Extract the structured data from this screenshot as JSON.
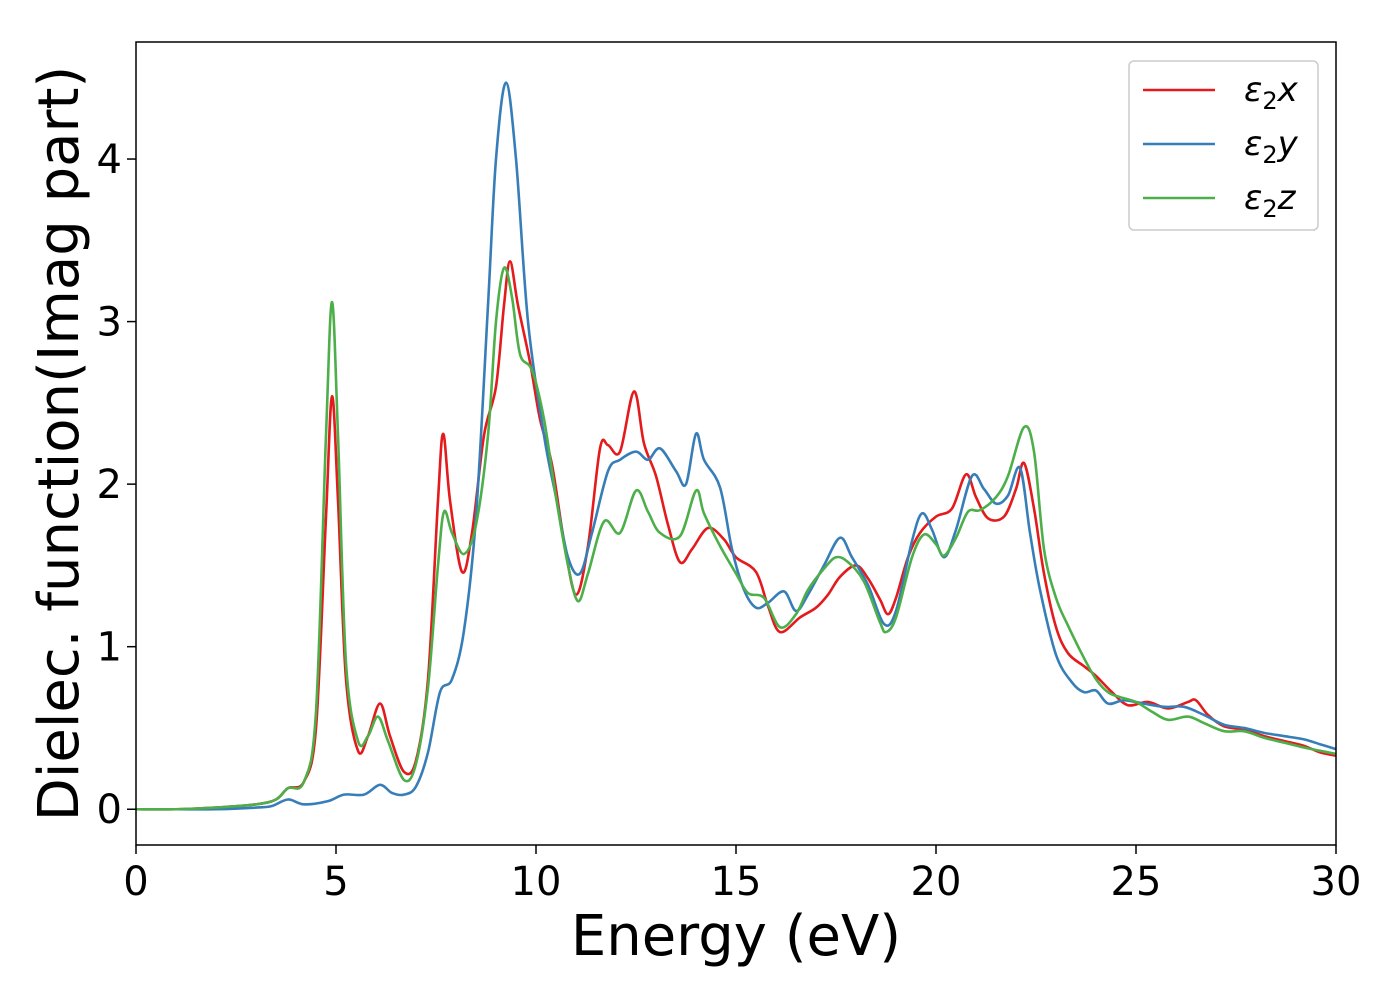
{
  "chart_data": {
    "type": "line",
    "title": "",
    "xlabel": "Energy (eV)",
    "ylabel": "Dielec. function(Imag part)",
    "xlim": [
      0,
      30
    ],
    "ylim": [
      -0.22,
      4.72
    ],
    "xticks": [
      0,
      5,
      10,
      15,
      20,
      25,
      30
    ],
    "yticks": [
      0,
      1,
      2,
      3,
      4
    ],
    "grid": false,
    "legend": "top-right",
    "series": [
      {
        "name": "ε2x",
        "legend_base": "ε",
        "legend_sub": "2",
        "legend_tail": "x",
        "color": "#e41a1c",
        "points": [
          [
            0,
            0.0
          ],
          [
            1,
            0.0
          ],
          [
            2,
            0.01
          ],
          [
            3,
            0.03
          ],
          [
            3.5,
            0.06
          ],
          [
            3.8,
            0.13
          ],
          [
            4.2,
            0.17
          ],
          [
            4.5,
            0.5
          ],
          [
            4.75,
            1.8
          ],
          [
            4.9,
            2.54
          ],
          [
            5.05,
            1.9
          ],
          [
            5.25,
            0.8
          ],
          [
            5.55,
            0.36
          ],
          [
            5.8,
            0.45
          ],
          [
            6.1,
            0.65
          ],
          [
            6.35,
            0.45
          ],
          [
            6.7,
            0.23
          ],
          [
            7.0,
            0.3
          ],
          [
            7.3,
            0.8
          ],
          [
            7.55,
            1.9
          ],
          [
            7.68,
            2.31
          ],
          [
            7.85,
            1.9
          ],
          [
            8.15,
            1.46
          ],
          [
            8.4,
            1.7
          ],
          [
            8.7,
            2.3
          ],
          [
            9.0,
            2.6
          ],
          [
            9.2,
            3.1
          ],
          [
            9.35,
            3.37
          ],
          [
            9.55,
            3.1
          ],
          [
            9.85,
            2.75
          ],
          [
            10.1,
            2.4
          ],
          [
            10.4,
            2.12
          ],
          [
            10.7,
            1.65
          ],
          [
            11.0,
            1.32
          ],
          [
            11.3,
            1.62
          ],
          [
            11.6,
            2.22
          ],
          [
            11.8,
            2.24
          ],
          [
            12.1,
            2.2
          ],
          [
            12.45,
            2.57
          ],
          [
            12.7,
            2.25
          ],
          [
            13.0,
            2.05
          ],
          [
            13.3,
            1.75
          ],
          [
            13.6,
            1.52
          ],
          [
            13.9,
            1.6
          ],
          [
            14.3,
            1.73
          ],
          [
            14.7,
            1.66
          ],
          [
            15.0,
            1.55
          ],
          [
            15.5,
            1.46
          ],
          [
            15.8,
            1.25
          ],
          [
            16.1,
            1.09
          ],
          [
            16.6,
            1.18
          ],
          [
            17.0,
            1.24
          ],
          [
            17.3,
            1.32
          ],
          [
            17.6,
            1.43
          ],
          [
            18.0,
            1.5
          ],
          [
            18.3,
            1.42
          ],
          [
            18.6,
            1.29
          ],
          [
            18.8,
            1.2
          ],
          [
            19.0,
            1.3
          ],
          [
            19.3,
            1.55
          ],
          [
            19.6,
            1.7
          ],
          [
            20.0,
            1.8
          ],
          [
            20.4,
            1.85
          ],
          [
            20.75,
            2.06
          ],
          [
            21.0,
            1.92
          ],
          [
            21.3,
            1.79
          ],
          [
            21.7,
            1.8
          ],
          [
            22.0,
            1.97
          ],
          [
            22.2,
            2.13
          ],
          [
            22.45,
            1.85
          ],
          [
            22.7,
            1.45
          ],
          [
            23.0,
            1.12
          ],
          [
            23.3,
            0.96
          ],
          [
            23.7,
            0.88
          ],
          [
            24.0,
            0.82
          ],
          [
            24.4,
            0.72
          ],
          [
            24.8,
            0.64
          ],
          [
            25.3,
            0.66
          ],
          [
            25.8,
            0.62
          ],
          [
            26.3,
            0.66
          ],
          [
            26.5,
            0.67
          ],
          [
            26.8,
            0.58
          ],
          [
            27.2,
            0.51
          ],
          [
            27.7,
            0.49
          ],
          [
            28.2,
            0.45
          ],
          [
            28.7,
            0.42
          ],
          [
            29.2,
            0.39
          ],
          [
            29.6,
            0.35
          ],
          [
            30.0,
            0.33
          ]
        ]
      },
      {
        "name": "ε2y",
        "legend_base": "ε",
        "legend_sub": "2",
        "legend_tail": "y",
        "color": "#377eb8",
        "points": [
          [
            0,
            0.0
          ],
          [
            1,
            0.0
          ],
          [
            2,
            0.0
          ],
          [
            3,
            0.01
          ],
          [
            3.4,
            0.02
          ],
          [
            3.8,
            0.06
          ],
          [
            4.2,
            0.03
          ],
          [
            4.8,
            0.05
          ],
          [
            5.2,
            0.09
          ],
          [
            5.7,
            0.09
          ],
          [
            6.1,
            0.15
          ],
          [
            6.4,
            0.1
          ],
          [
            6.7,
            0.09
          ],
          [
            7.0,
            0.14
          ],
          [
            7.3,
            0.35
          ],
          [
            7.6,
            0.72
          ],
          [
            7.9,
            0.8
          ],
          [
            8.2,
            1.1
          ],
          [
            8.5,
            1.8
          ],
          [
            8.8,
            3.1
          ],
          [
            9.0,
            4.0
          ],
          [
            9.25,
            4.47
          ],
          [
            9.5,
            4.0
          ],
          [
            9.8,
            3.0
          ],
          [
            10.2,
            2.3
          ],
          [
            10.5,
            1.92
          ],
          [
            10.8,
            1.55
          ],
          [
            11.1,
            1.45
          ],
          [
            11.4,
            1.7
          ],
          [
            11.8,
            2.08
          ],
          [
            12.1,
            2.15
          ],
          [
            12.5,
            2.2
          ],
          [
            12.8,
            2.15
          ],
          [
            13.1,
            2.22
          ],
          [
            13.5,
            2.08
          ],
          [
            13.75,
            2.0
          ],
          [
            14.0,
            2.31
          ],
          [
            14.2,
            2.15
          ],
          [
            14.6,
            1.98
          ],
          [
            14.9,
            1.6
          ],
          [
            15.2,
            1.35
          ],
          [
            15.5,
            1.24
          ],
          [
            15.8,
            1.27
          ],
          [
            16.2,
            1.34
          ],
          [
            16.5,
            1.22
          ],
          [
            16.8,
            1.32
          ],
          [
            17.2,
            1.5
          ],
          [
            17.6,
            1.67
          ],
          [
            17.9,
            1.55
          ],
          [
            18.3,
            1.38
          ],
          [
            18.7,
            1.14
          ],
          [
            19.0,
            1.22
          ],
          [
            19.4,
            1.65
          ],
          [
            19.65,
            1.82
          ],
          [
            19.9,
            1.72
          ],
          [
            20.2,
            1.55
          ],
          [
            20.5,
            1.72
          ],
          [
            20.9,
            2.05
          ],
          [
            21.2,
            1.97
          ],
          [
            21.5,
            1.88
          ],
          [
            21.8,
            1.93
          ],
          [
            22.1,
            2.1
          ],
          [
            22.35,
            1.7
          ],
          [
            22.6,
            1.35
          ],
          [
            23.0,
            0.95
          ],
          [
            23.4,
            0.78
          ],
          [
            23.7,
            0.72
          ],
          [
            24.0,
            0.73
          ],
          [
            24.3,
            0.65
          ],
          [
            24.7,
            0.67
          ],
          [
            25.2,
            0.65
          ],
          [
            25.7,
            0.63
          ],
          [
            26.2,
            0.63
          ],
          [
            26.7,
            0.58
          ],
          [
            27.2,
            0.52
          ],
          [
            27.7,
            0.5
          ],
          [
            28.2,
            0.47
          ],
          [
            28.7,
            0.45
          ],
          [
            29.2,
            0.43
          ],
          [
            29.6,
            0.4
          ],
          [
            30.0,
            0.37
          ]
        ]
      },
      {
        "name": "ε2z",
        "legend_base": "ε",
        "legend_sub": "2",
        "legend_tail": "z",
        "color": "#4daf4a",
        "points": [
          [
            0,
            0.0
          ],
          [
            1,
            0.0
          ],
          [
            2,
            0.01
          ],
          [
            3,
            0.03
          ],
          [
            3.5,
            0.06
          ],
          [
            3.8,
            0.13
          ],
          [
            4.2,
            0.17
          ],
          [
            4.5,
            0.6
          ],
          [
            4.75,
            2.3
          ],
          [
            4.9,
            3.12
          ],
          [
            5.05,
            2.3
          ],
          [
            5.25,
            0.9
          ],
          [
            5.55,
            0.42
          ],
          [
            5.8,
            0.45
          ],
          [
            6.05,
            0.57
          ],
          [
            6.3,
            0.42
          ],
          [
            6.7,
            0.18
          ],
          [
            7.0,
            0.28
          ],
          [
            7.3,
            0.75
          ],
          [
            7.55,
            1.5
          ],
          [
            7.7,
            1.83
          ],
          [
            7.9,
            1.7
          ],
          [
            8.2,
            1.57
          ],
          [
            8.5,
            1.75
          ],
          [
            8.8,
            2.3
          ],
          [
            9.0,
            3.0
          ],
          [
            9.2,
            3.33
          ],
          [
            9.4,
            3.15
          ],
          [
            9.6,
            2.8
          ],
          [
            9.9,
            2.7
          ],
          [
            10.2,
            2.4
          ],
          [
            10.5,
            1.92
          ],
          [
            10.8,
            1.5
          ],
          [
            11.05,
            1.28
          ],
          [
            11.3,
            1.45
          ],
          [
            11.7,
            1.77
          ],
          [
            12.1,
            1.7
          ],
          [
            12.5,
            1.96
          ],
          [
            12.8,
            1.83
          ],
          [
            13.1,
            1.7
          ],
          [
            13.6,
            1.68
          ],
          [
            14.0,
            1.96
          ],
          [
            14.2,
            1.82
          ],
          [
            14.6,
            1.62
          ],
          [
            15.0,
            1.45
          ],
          [
            15.3,
            1.33
          ],
          [
            15.7,
            1.3
          ],
          [
            16.1,
            1.12
          ],
          [
            16.5,
            1.2
          ],
          [
            16.8,
            1.35
          ],
          [
            17.2,
            1.48
          ],
          [
            17.5,
            1.55
          ],
          [
            17.8,
            1.52
          ],
          [
            18.2,
            1.4
          ],
          [
            18.6,
            1.15
          ],
          [
            18.75,
            1.09
          ],
          [
            19.0,
            1.18
          ],
          [
            19.4,
            1.55
          ],
          [
            19.7,
            1.69
          ],
          [
            20.0,
            1.63
          ],
          [
            20.2,
            1.56
          ],
          [
            20.5,
            1.67
          ],
          [
            20.8,
            1.83
          ],
          [
            21.1,
            1.84
          ],
          [
            21.5,
            1.92
          ],
          [
            21.8,
            2.05
          ],
          [
            22.2,
            2.35
          ],
          [
            22.45,
            2.2
          ],
          [
            22.7,
            1.6
          ],
          [
            23.0,
            1.3
          ],
          [
            23.3,
            1.13
          ],
          [
            23.7,
            0.93
          ],
          [
            24.0,
            0.8
          ],
          [
            24.3,
            0.72
          ],
          [
            24.6,
            0.69
          ],
          [
            25.0,
            0.66
          ],
          [
            25.4,
            0.6
          ],
          [
            25.8,
            0.55
          ],
          [
            26.3,
            0.57
          ],
          [
            26.7,
            0.53
          ],
          [
            27.2,
            0.48
          ],
          [
            27.7,
            0.48
          ],
          [
            28.2,
            0.44
          ],
          [
            28.7,
            0.41
          ],
          [
            29.2,
            0.38
          ],
          [
            29.6,
            0.36
          ],
          [
            30.0,
            0.34
          ]
        ]
      }
    ]
  }
}
